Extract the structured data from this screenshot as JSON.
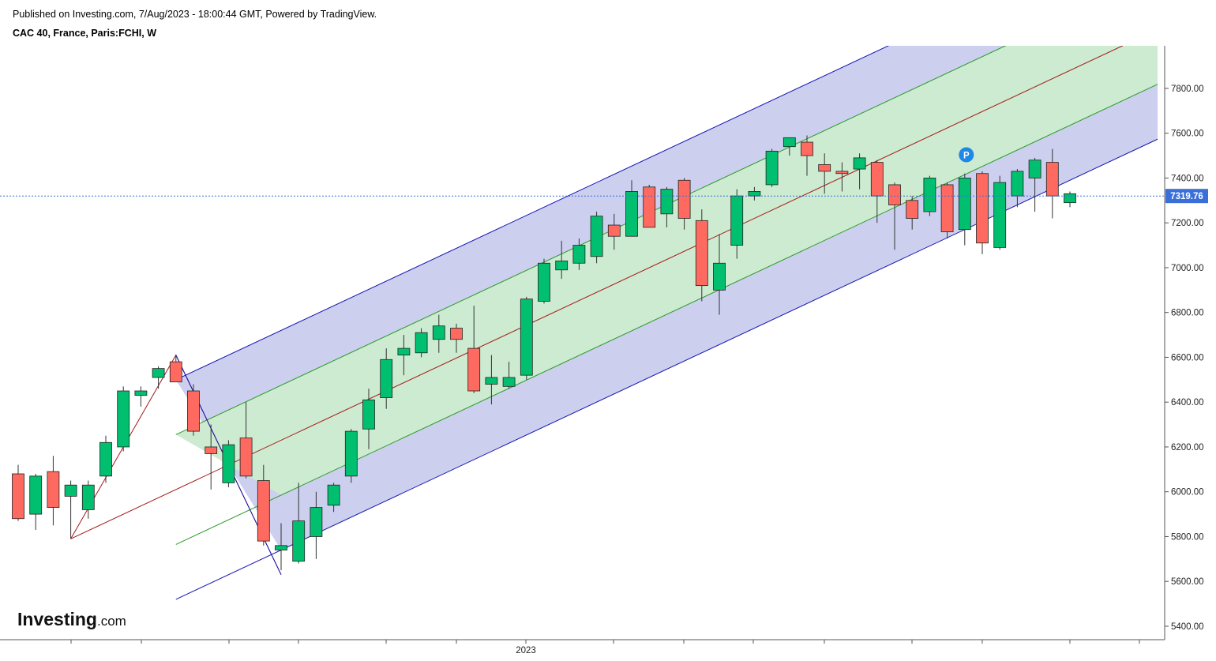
{
  "header": {
    "published": "Published on Investing.com, 7/Aug/2023 - 18:00:44 GMT, Powered by TradingView.",
    "title": "CAC 40, France, Paris:FCHI, W"
  },
  "branding": {
    "logo_main": "Investing",
    "logo_sub": ".com"
  },
  "colors": {
    "up": "#00c070",
    "down": "#ff6a60",
    "outer_fill": "#cccfee",
    "inner_fill": "#cdebd0",
    "outer_line": "#1515b3",
    "inner_line": "#2a9a2a",
    "median_line": "#a31818",
    "last_price": "#3a6fd8",
    "marker": "#1e88e5"
  },
  "chart_data": {
    "type": "candlestick",
    "timeframe": "W",
    "ylim": [
      5340,
      7990
    ],
    "yticks": [
      5400,
      5600,
      5800,
      6000,
      6200,
      6400,
      6600,
      6800,
      7000,
      7200,
      7400,
      7600,
      7800
    ],
    "ytick_labels": [
      "5400.00",
      "5600.00",
      "5800.00",
      "6000.00",
      "6200.00",
      "6400.00",
      "6600.00",
      "6800.00",
      "7000.00",
      "7200.00",
      "7400.00",
      "7600.00",
      "7800.00"
    ],
    "xtick_labels": [
      "2023"
    ],
    "last_price": 7319.76,
    "last_price_label": "7319.76",
    "marker_label": "P",
    "marker_bar": 54,
    "candles": [
      [
        6080,
        6120,
        5870,
        5880
      ],
      [
        5900,
        6080,
        5830,
        6070
      ],
      [
        6090,
        6160,
        5850,
        5930
      ],
      [
        5980,
        6050,
        5790,
        6030
      ],
      [
        5920,
        6050,
        5880,
        6030
      ],
      [
        6070,
        6250,
        6040,
        6220
      ],
      [
        6200,
        6470,
        6180,
        6450
      ],
      [
        6430,
        6470,
        6380,
        6450
      ],
      [
        6510,
        6560,
        6460,
        6550
      ],
      [
        6580,
        6610,
        6500,
        6490
      ],
      [
        6450,
        6480,
        6250,
        6270
      ],
      [
        6200,
        6300,
        6010,
        6170
      ],
      [
        6040,
        6230,
        6020,
        6210
      ],
      [
        6240,
        6400,
        6060,
        6070
      ],
      [
        6050,
        6120,
        5760,
        5780
      ],
      [
        5740,
        5860,
        5650,
        5760
      ],
      [
        5690,
        6040,
        5680,
        5870
      ],
      [
        5800,
        6000,
        5700,
        5930
      ],
      [
        5940,
        6040,
        5910,
        6030
      ],
      [
        6070,
        6280,
        6040,
        6270
      ],
      [
        6280,
        6460,
        6190,
        6410
      ],
      [
        6420,
        6640,
        6370,
        6590
      ],
      [
        6610,
        6700,
        6520,
        6640
      ],
      [
        6620,
        6730,
        6600,
        6710
      ],
      [
        6680,
        6790,
        6620,
        6740
      ],
      [
        6730,
        6750,
        6620,
        6680
      ],
      [
        6640,
        6830,
        6440,
        6450
      ],
      [
        6480,
        6610,
        6390,
        6510
      ],
      [
        6470,
        6580,
        6460,
        6510
      ],
      [
        6520,
        6870,
        6500,
        6860
      ],
      [
        6850,
        7040,
        6840,
        7020
      ],
      [
        6990,
        7120,
        6950,
        7030
      ],
      [
        7020,
        7130,
        6990,
        7100
      ],
      [
        7050,
        7250,
        7020,
        7230
      ],
      [
        7190,
        7240,
        7080,
        7140
      ],
      [
        7140,
        7390,
        7140,
        7340
      ],
      [
        7360,
        7370,
        7180,
        7180
      ],
      [
        7240,
        7360,
        7180,
        7350
      ],
      [
        7390,
        7400,
        7170,
        7220
      ],
      [
        7210,
        7260,
        6850,
        6920
      ],
      [
        6900,
        7150,
        6790,
        7020
      ],
      [
        7100,
        7350,
        7040,
        7320
      ],
      [
        7320,
        7360,
        7300,
        7340
      ],
      [
        7370,
        7530,
        7360,
        7520
      ],
      [
        7540,
        7580,
        7500,
        7580
      ],
      [
        7560,
        7590,
        7410,
        7500
      ],
      [
        7460,
        7510,
        7330,
        7430
      ],
      [
        7430,
        7470,
        7340,
        7420
      ],
      [
        7440,
        7510,
        7350,
        7490
      ],
      [
        7470,
        7480,
        7200,
        7320
      ],
      [
        7370,
        7380,
        7080,
        7280
      ],
      [
        7300,
        7320,
        7170,
        7220
      ],
      [
        7250,
        7410,
        7230,
        7400
      ],
      [
        7370,
        7380,
        7130,
        7160
      ],
      [
        7170,
        7420,
        7100,
        7400
      ],
      [
        7420,
        7430,
        7060,
        7110
      ],
      [
        7090,
        7410,
        7080,
        7380
      ],
      [
        7320,
        7440,
        7270,
        7430
      ],
      [
        7400,
        7490,
        7250,
        7480
      ],
      [
        7470,
        7530,
        7220,
        7320
      ],
      [
        7290,
        7340,
        7270,
        7330
      ]
    ],
    "pitchfork": {
      "pivots": [
        [
          3,
          5790
        ],
        [
          9,
          6610
        ],
        [
          15,
          5630
        ]
      ],
      "outer_offset": 490,
      "inner_offset": 245,
      "end_bar": 65
    }
  }
}
